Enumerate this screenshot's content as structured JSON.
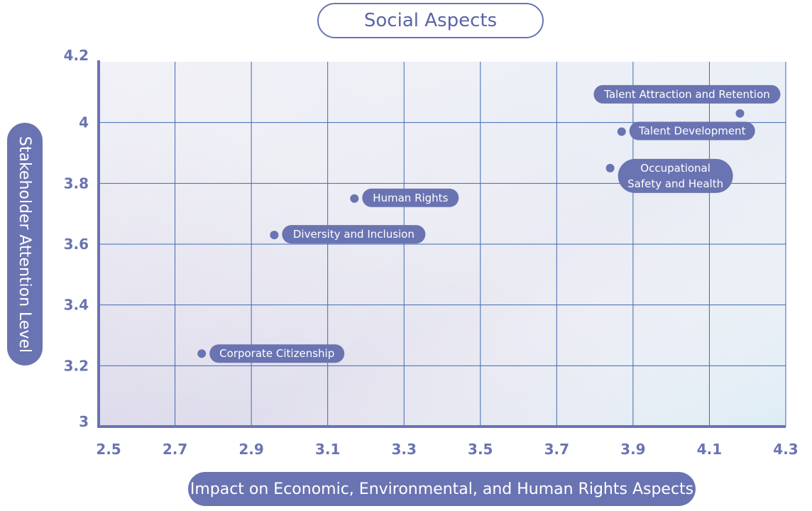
{
  "chart_data": {
    "type": "scatter",
    "title": "Social Aspects",
    "xlabel": "Impact on Economic, Environmental, and Human Rights Aspects",
    "ylabel": "Stakeholder Attention Level",
    "xlim": [
      2.5,
      4.3
    ],
    "ylim": [
      3,
      4.2
    ],
    "x_ticks": [
      "2.5",
      "2.7",
      "2.9",
      "3.1",
      "3.3",
      "3.5",
      "3.7",
      "3.9",
      "4.1",
      "4.3"
    ],
    "y_ticks": [
      "3",
      "3.2",
      "3.4",
      "3.6",
      "3.8",
      "4",
      "4.2"
    ],
    "grid": true,
    "points": [
      {
        "label": "Talent Attraction and Retention",
        "x": 4.18,
        "y": 4.03
      },
      {
        "label": "Talent Development",
        "x": 3.87,
        "y": 3.97
      },
      {
        "label": "Occupational\nSafety and Health",
        "x": 3.84,
        "y": 3.85
      },
      {
        "label": "Human Rights",
        "x": 3.17,
        "y": 3.75
      },
      {
        "label": "Diversity and Inclusion",
        "x": 2.96,
        "y": 3.63
      },
      {
        "label": "Corporate Citizenship",
        "x": 2.77,
        "y": 3.24
      }
    ],
    "colors": {
      "accent": "#6a74b2",
      "grid": "#3f6ab0"
    }
  }
}
